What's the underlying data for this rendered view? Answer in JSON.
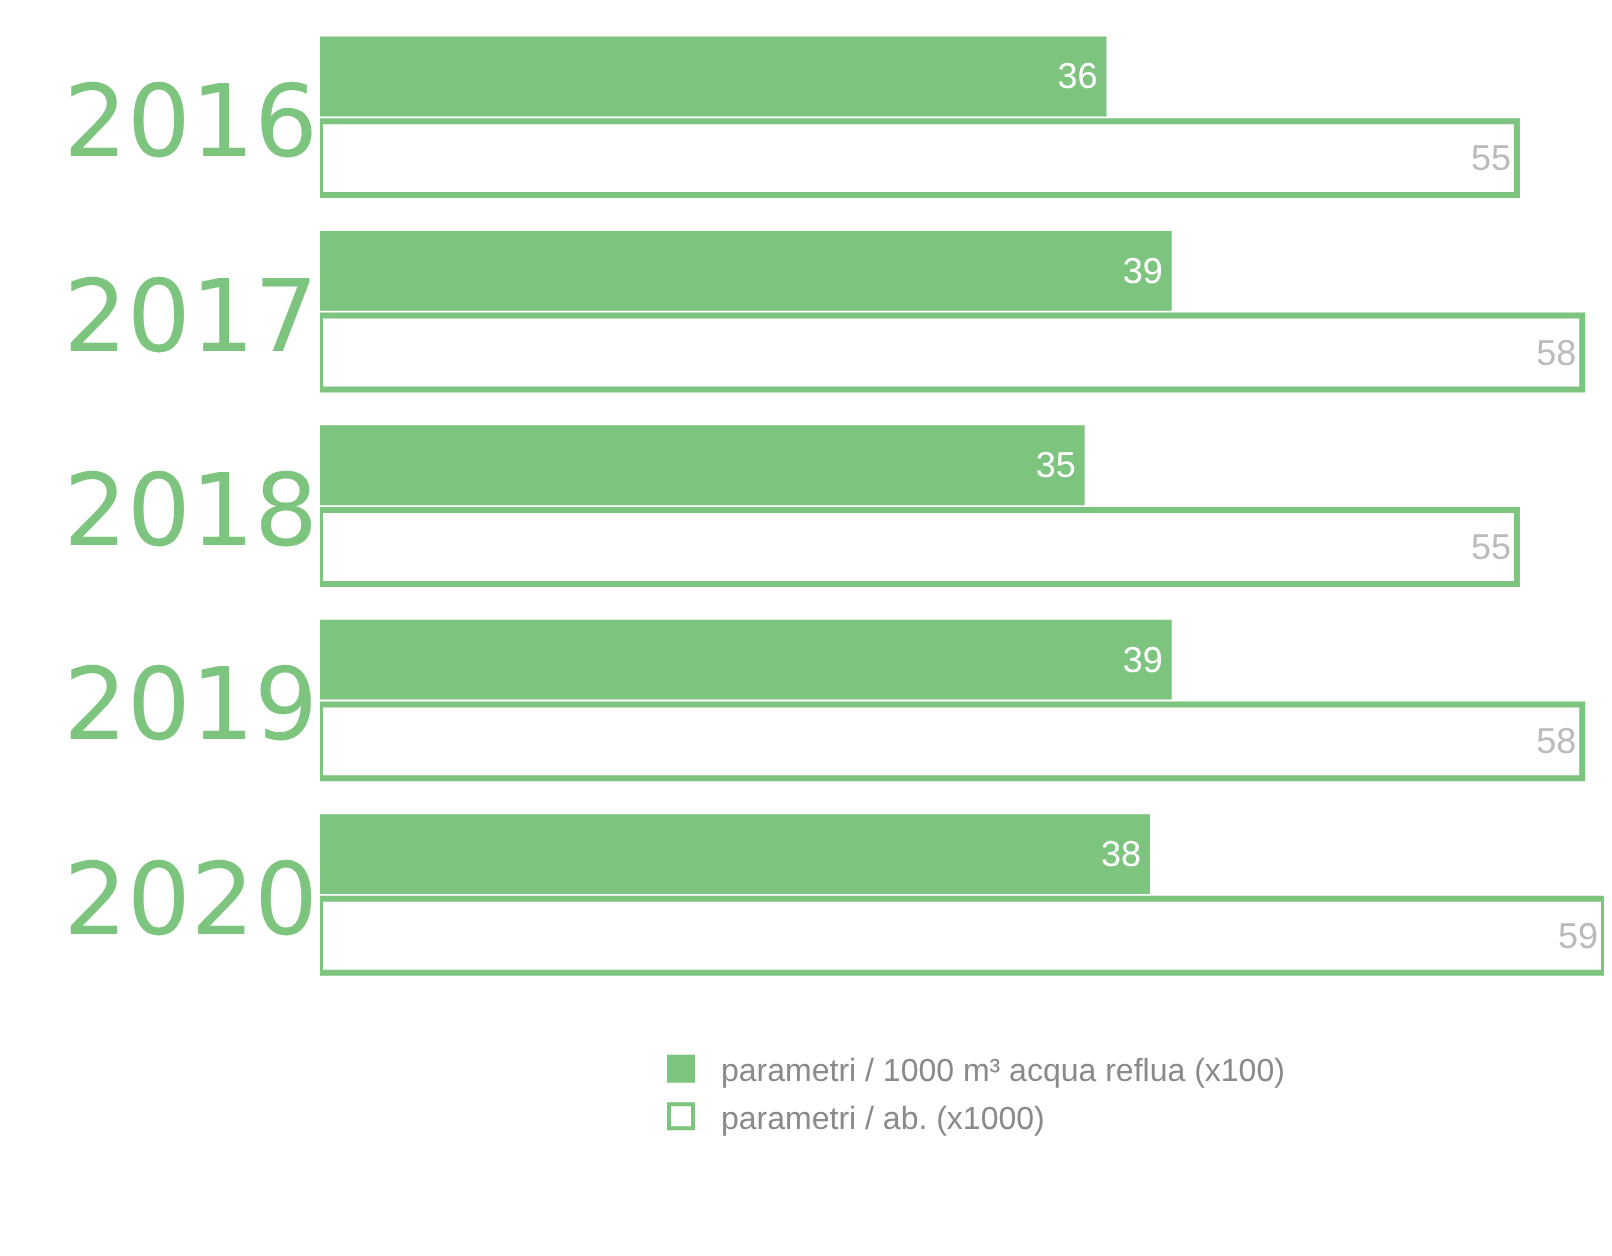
{
  "chart_data": {
    "type": "bar",
    "orientation": "horizontal",
    "categories": [
      "2016",
      "2017",
      "2018",
      "2019",
      "2020"
    ],
    "series": [
      {
        "name": "parametri / 1000 m³ acqua reflua (x100)",
        "color": "#7dc57f",
        "values": [
          36,
          39,
          35,
          39,
          38
        ]
      },
      {
        "name": "parametri / ab. (x1000)",
        "color": "#7dc57f",
        "values": [
          55,
          58,
          55,
          58,
          59
        ]
      }
    ],
    "data_labels": true,
    "legend": "bottom"
  }
}
